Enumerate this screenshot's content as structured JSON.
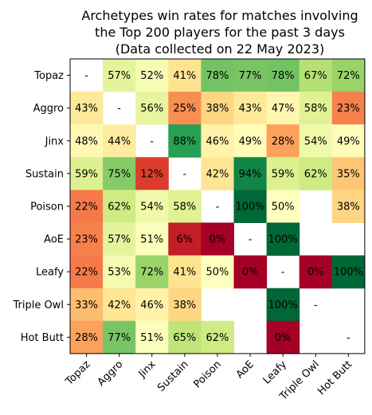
{
  "chart_data": {
    "type": "heatmap",
    "title_lines": [
      "Archetypes win rates for matches involving",
      "the Top 200 players for the past 3 days",
      "(Data collected on 22 May 2023)"
    ],
    "rows": [
      "Topaz",
      "Aggro",
      "Jinx",
      "Sustain",
      "Poison",
      "AoE",
      "Leafy",
      "Triple Owl",
      "Hot Butt"
    ],
    "cols": [
      "Topaz",
      "Aggro",
      "Jinx",
      "Sustain",
      "Poison",
      "AoE",
      "Leafy",
      "Triple Owl",
      "Hot Butt"
    ],
    "values": [
      [
        null,
        57,
        52,
        41,
        78,
        77,
        78,
        67,
        72
      ],
      [
        43,
        null,
        56,
        25,
        38,
        43,
        47,
        58,
        23
      ],
      [
        48,
        44,
        null,
        88,
        46,
        49,
        28,
        54,
        49
      ],
      [
        59,
        75,
        12,
        null,
        42,
        94,
        59,
        62,
        35
      ],
      [
        22,
        62,
        54,
        58,
        null,
        100,
        50,
        null,
        38
      ],
      [
        23,
        57,
        51,
        6,
        0,
        null,
        100,
        null,
        null
      ],
      [
        22,
        53,
        72,
        41,
        50,
        0,
        null,
        0,
        100
      ],
      [
        33,
        42,
        46,
        38,
        null,
        null,
        100,
        null,
        null
      ],
      [
        28,
        77,
        51,
        65,
        62,
        null,
        0,
        null,
        null
      ]
    ],
    "missing_label": "-",
    "value_suffix": "%",
    "colormap": "RdYlGn",
    "vmin": 0,
    "vmax": 100
  }
}
